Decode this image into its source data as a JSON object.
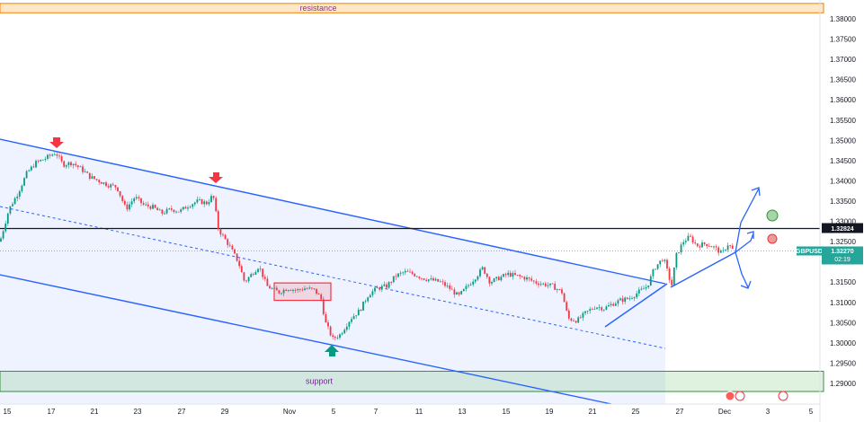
{
  "chart_data": {
    "type": "candlestick",
    "symbol": "GBPUSD",
    "last_price": "1.32270",
    "countdown": "02:19",
    "horizontal_level": "1.32824",
    "ylim": [
      1.2875,
      1.385
    ],
    "y_ticks": [
      "1.38000",
      "1.37500",
      "1.37000",
      "1.36500",
      "1.36000",
      "1.35500",
      "1.35000",
      "1.34500",
      "1.34000",
      "1.33500",
      "1.33000",
      "1.32500",
      "1.31500",
      "1.31000",
      "1.30500",
      "1.30000",
      "1.29500",
      "1.29000"
    ],
    "x_ticks": [
      "15",
      "17",
      "21",
      "23",
      "27",
      "29",
      "Nov",
      "5",
      "7",
      "11",
      "13",
      "15",
      "19",
      "21",
      "25",
      "27",
      "Dec",
      "3",
      "5"
    ],
    "resistance": {
      "label": "resistance",
      "low": 1.3815,
      "high": 1.3838
    },
    "support": {
      "label": "support",
      "low": 1.288,
      "high": 1.293
    },
    "consolidation_box": {
      "low": 1.3105,
      "high": 1.3148
    },
    "price_path": [
      [
        0,
        1.325
      ],
      [
        10,
        1.333
      ],
      [
        20,
        1.337
      ],
      [
        30,
        1.342
      ],
      [
        40,
        1.3445
      ],
      [
        50,
        1.3455
      ],
      [
        62,
        1.347
      ],
      [
        70,
        1.344
      ],
      [
        80,
        1.3445
      ],
      [
        90,
        1.343
      ],
      [
        100,
        1.341
      ],
      [
        110,
        1.34
      ],
      [
        120,
        1.339
      ],
      [
        130,
        1.3385
      ],
      [
        140,
        1.333
      ],
      [
        150,
        1.336
      ],
      [
        160,
        1.334
      ],
      [
        170,
        1.3335
      ],
      [
        180,
        1.332
      ],
      [
        190,
        1.333
      ],
      [
        200,
        1.3325
      ],
      [
        210,
        1.334
      ],
      [
        220,
        1.335
      ],
      [
        230,
        1.3345
      ],
      [
        237,
        1.3365
      ],
      [
        243,
        1.328
      ],
      [
        255,
        1.324
      ],
      [
        265,
        1.32
      ],
      [
        272,
        1.315
      ],
      [
        280,
        1.317
      ],
      [
        288,
        1.319
      ],
      [
        297,
        1.314
      ],
      [
        310,
        1.3125
      ],
      [
        320,
        1.3135
      ],
      [
        330,
        1.313
      ],
      [
        340,
        1.3135
      ],
      [
        350,
        1.313
      ],
      [
        357,
        1.311
      ],
      [
        362,
        1.305
      ],
      [
        370,
        1.301
      ],
      [
        378,
        1.302
      ],
      [
        390,
        1.306
      ],
      [
        400,
        1.308
      ],
      [
        410,
        1.312
      ],
      [
        420,
        1.3135
      ],
      [
        430,
        1.314
      ],
      [
        440,
        1.3165
      ],
      [
        450,
        1.3175
      ],
      [
        460,
        1.317
      ],
      [
        470,
        1.316
      ],
      [
        480,
        1.3155
      ],
      [
        490,
        1.315
      ],
      [
        500,
        1.3135
      ],
      [
        510,
        1.3115
      ],
      [
        520,
        1.314
      ],
      [
        530,
        1.3165
      ],
      [
        537,
        1.3185
      ],
      [
        545,
        1.315
      ],
      [
        555,
        1.316
      ],
      [
        565,
        1.317
      ],
      [
        575,
        1.3165
      ],
      [
        585,
        1.316
      ],
      [
        595,
        1.315
      ],
      [
        605,
        1.3145
      ],
      [
        615,
        1.314
      ],
      [
        625,
        1.3125
      ],
      [
        632,
        1.306
      ],
      [
        642,
        1.3055
      ],
      [
        652,
        1.3075
      ],
      [
        662,
        1.309
      ],
      [
        672,
        1.3085
      ],
      [
        680,
        1.3095
      ],
      [
        690,
        1.3105
      ],
      [
        700,
        1.311
      ],
      [
        710,
        1.3125
      ],
      [
        720,
        1.314
      ],
      [
        728,
        1.3185
      ],
      [
        738,
        1.321
      ],
      [
        747,
        1.314
      ],
      [
        752,
        1.3215
      ],
      [
        760,
        1.325
      ],
      [
        767,
        1.3262
      ],
      [
        775,
        1.324
      ],
      [
        785,
        1.3245
      ],
      [
        795,
        1.3235
      ],
      [
        803,
        1.322
      ],
      [
        810,
        1.3245
      ],
      [
        816,
        1.3227
      ]
    ]
  }
}
